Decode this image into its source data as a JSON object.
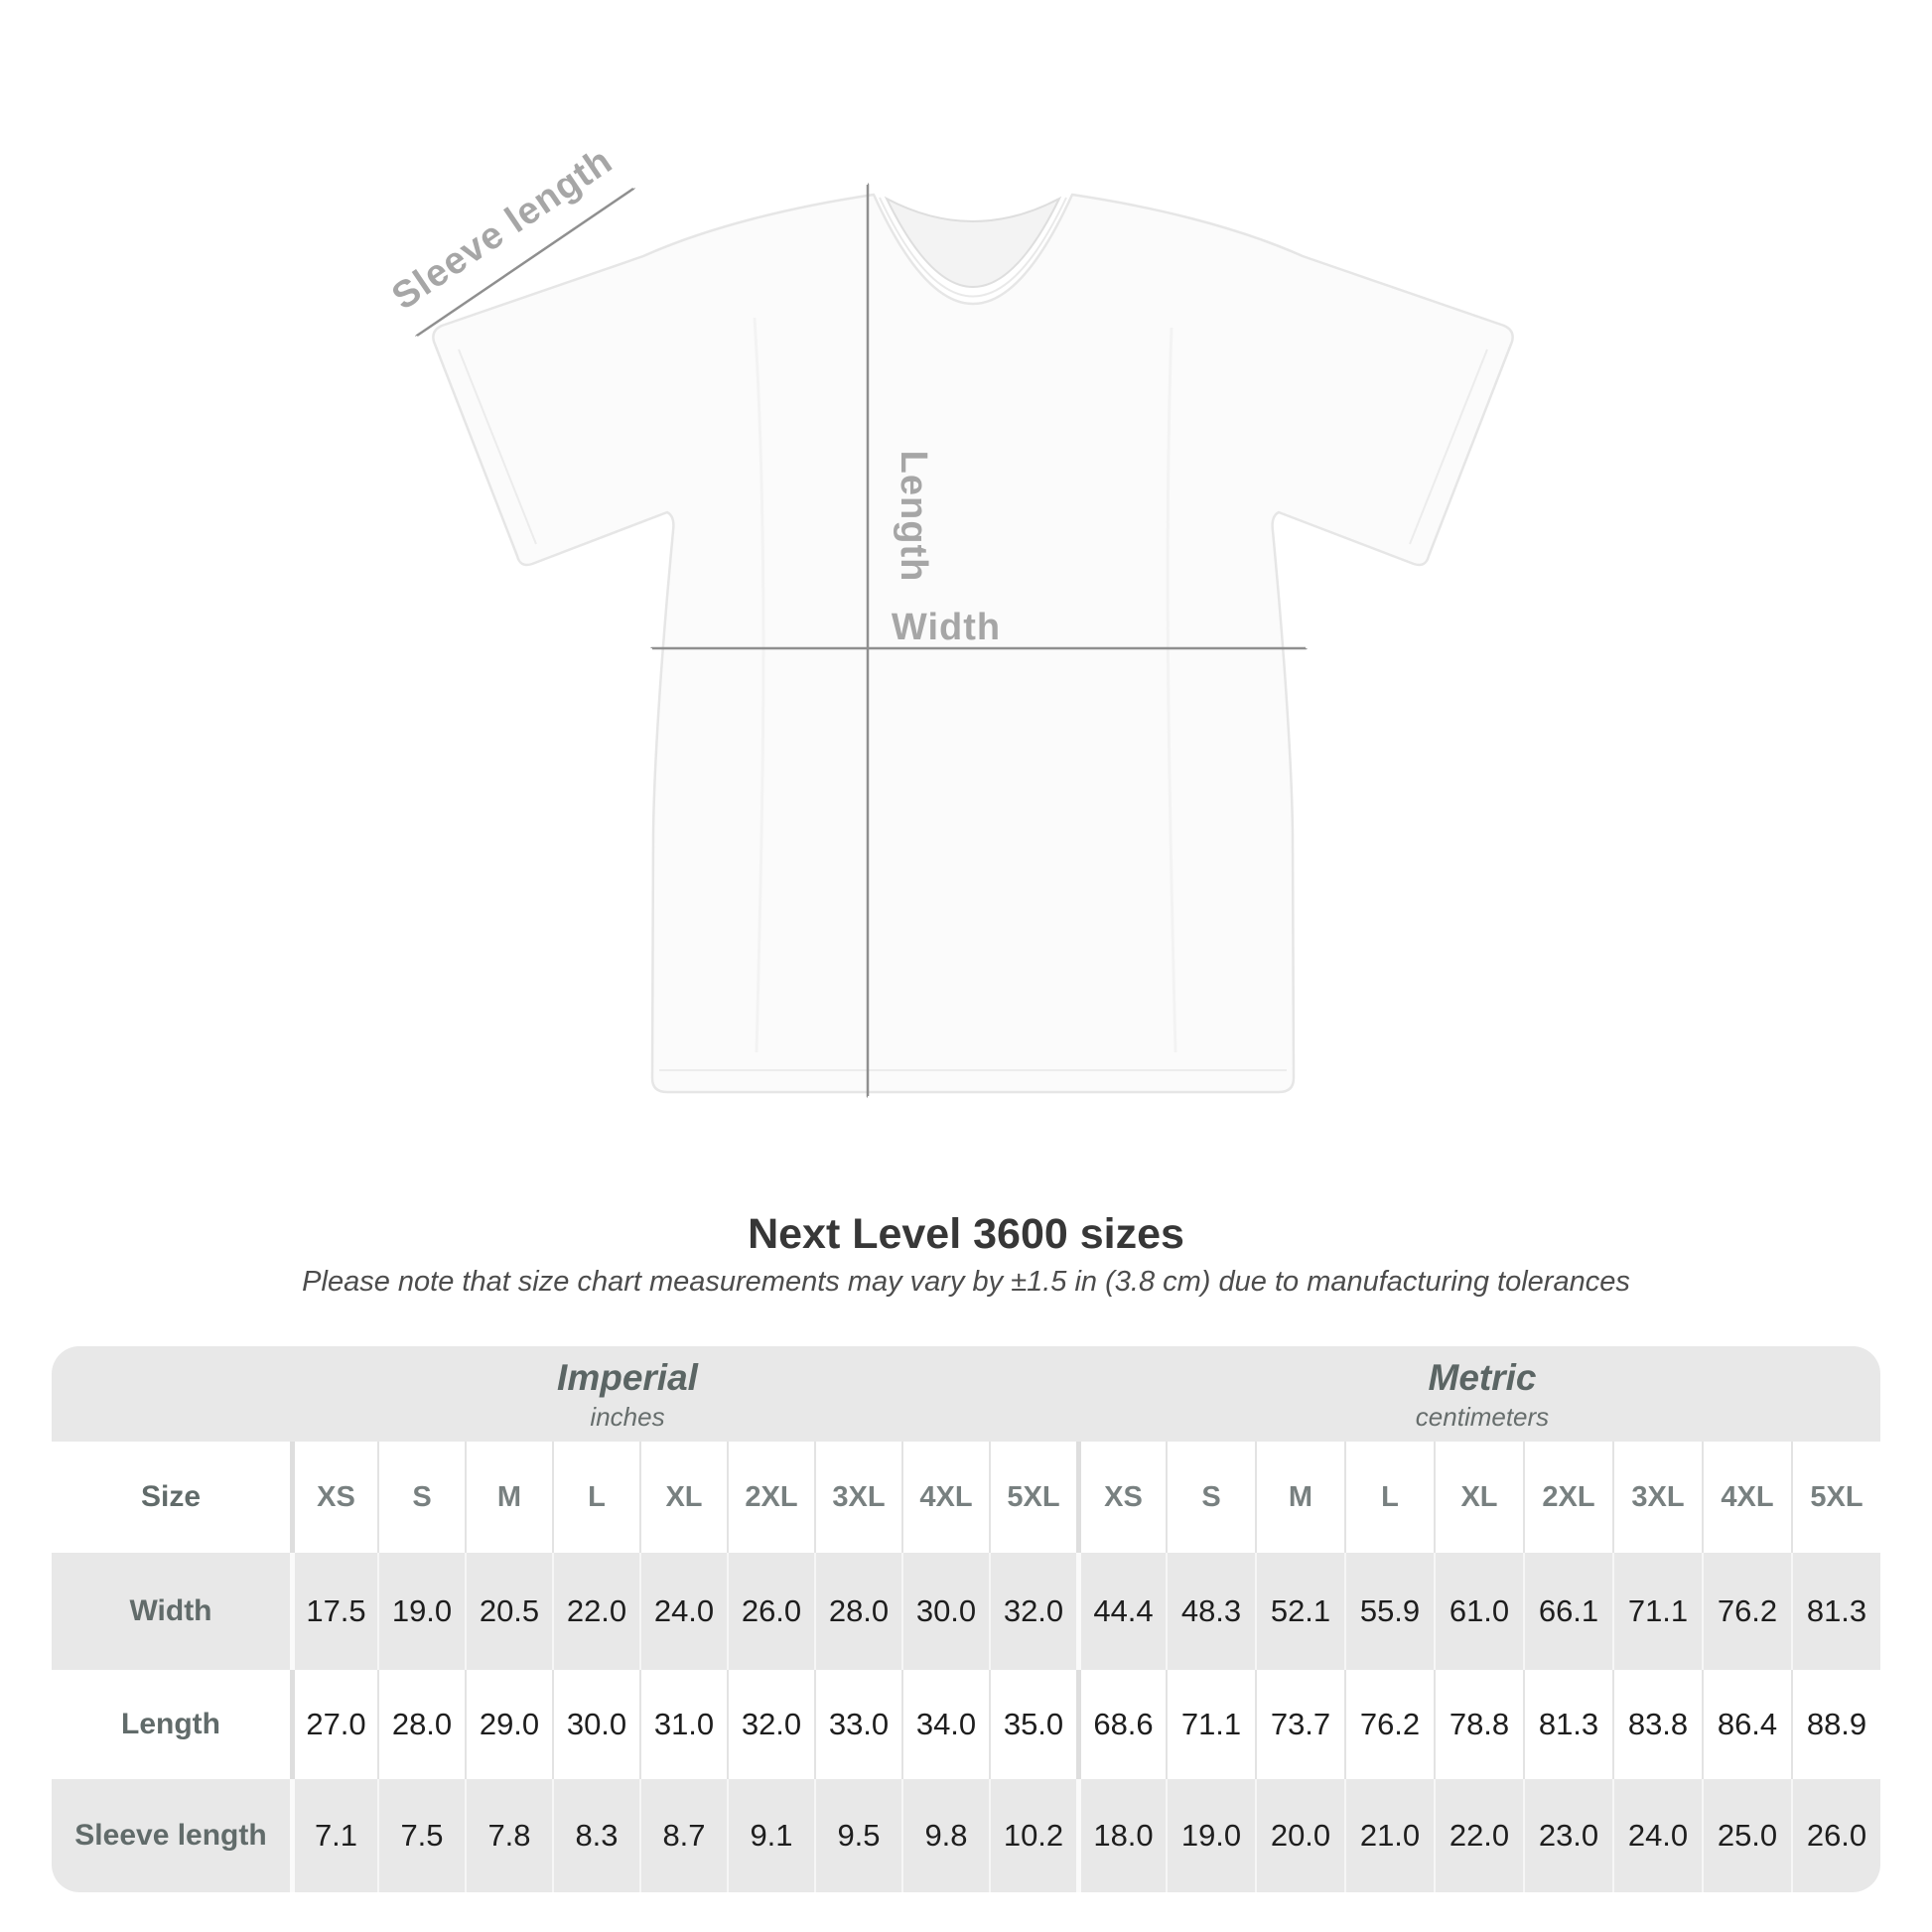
{
  "title": "Next Level 3600 sizes",
  "subtitle": "Please note that size chart measurements may vary by ±1.5 in (3.8 cm) due to manufacturing tolerances",
  "diagram": {
    "sleeve_length_label": "Sleeve length",
    "length_label": "Length",
    "width_label": "Width"
  },
  "table": {
    "imperial_header": {
      "label": "Imperial",
      "sublabel": "inches"
    },
    "metric_header": {
      "label": "Metric",
      "sublabel": "centimeters"
    },
    "size_label": "Size",
    "sizes": [
      "XS",
      "S",
      "M",
      "L",
      "XL",
      "2XL",
      "3XL",
      "4XL",
      "5XL"
    ],
    "rows": [
      {
        "label": "Width",
        "imperial": [
          "17.5",
          "19.0",
          "20.5",
          "22.0",
          "24.0",
          "26.0",
          "28.0",
          "30.0",
          "32.0"
        ],
        "metric": [
          "44.4",
          "48.3",
          "52.1",
          "55.9",
          "61.0",
          "66.1",
          "71.1",
          "76.2",
          "81.3"
        ]
      },
      {
        "label": "Length",
        "imperial": [
          "27.0",
          "28.0",
          "29.0",
          "30.0",
          "31.0",
          "32.0",
          "33.0",
          "34.0",
          "35.0"
        ],
        "metric": [
          "68.6",
          "71.1",
          "73.7",
          "76.2",
          "78.8",
          "81.3",
          "83.8",
          "86.4",
          "88.9"
        ]
      },
      {
        "label": "Sleeve length",
        "imperial": [
          "7.1",
          "7.5",
          "7.8",
          "8.3",
          "8.7",
          "9.1",
          "9.5",
          "9.8",
          "10.2"
        ],
        "metric": [
          "18.0",
          "19.0",
          "20.0",
          "21.0",
          "22.0",
          "23.0",
          "24.0",
          "25.0",
          "26.0"
        ]
      }
    ]
  },
  "colors": {
    "table_band": "#e8e8e8",
    "row_white": "#ffffff",
    "value_text": "#1e1e1e",
    "header_text": "#5b6564",
    "size_text": "#788080",
    "diagram_label": "#a6a6a6",
    "arrow": "#8f8f8f",
    "title_text": "#373737",
    "shirt_fill": "#fbfbfb"
  },
  "chart_data": {
    "type": "table",
    "title": "Next Level 3600 sizes",
    "note": "Please note that size chart measurements may vary by ±1.5 in (3.8 cm) due to manufacturing tolerances",
    "units": {
      "imperial": "inches",
      "metric": "centimeters"
    },
    "sizes": [
      "XS",
      "S",
      "M",
      "L",
      "XL",
      "2XL",
      "3XL",
      "4XL",
      "5XL"
    ],
    "measurements": {
      "width": {
        "imperial": [
          17.5,
          19.0,
          20.5,
          22.0,
          24.0,
          26.0,
          28.0,
          30.0,
          32.0
        ],
        "metric": [
          44.4,
          48.3,
          52.1,
          55.9,
          61.0,
          66.1,
          71.1,
          76.2,
          81.3
        ]
      },
      "length": {
        "imperial": [
          27.0,
          28.0,
          29.0,
          30.0,
          31.0,
          32.0,
          33.0,
          34.0,
          35.0
        ],
        "metric": [
          68.6,
          71.1,
          73.7,
          76.2,
          78.8,
          81.3,
          83.8,
          86.4,
          88.9
        ]
      },
      "sleeve_length": {
        "imperial": [
          7.1,
          7.5,
          7.8,
          8.3,
          8.7,
          9.1,
          9.5,
          9.8,
          10.2
        ],
        "metric": [
          18.0,
          19.0,
          20.0,
          21.0,
          22.0,
          23.0,
          24.0,
          25.0,
          26.0
        ]
      }
    }
  }
}
